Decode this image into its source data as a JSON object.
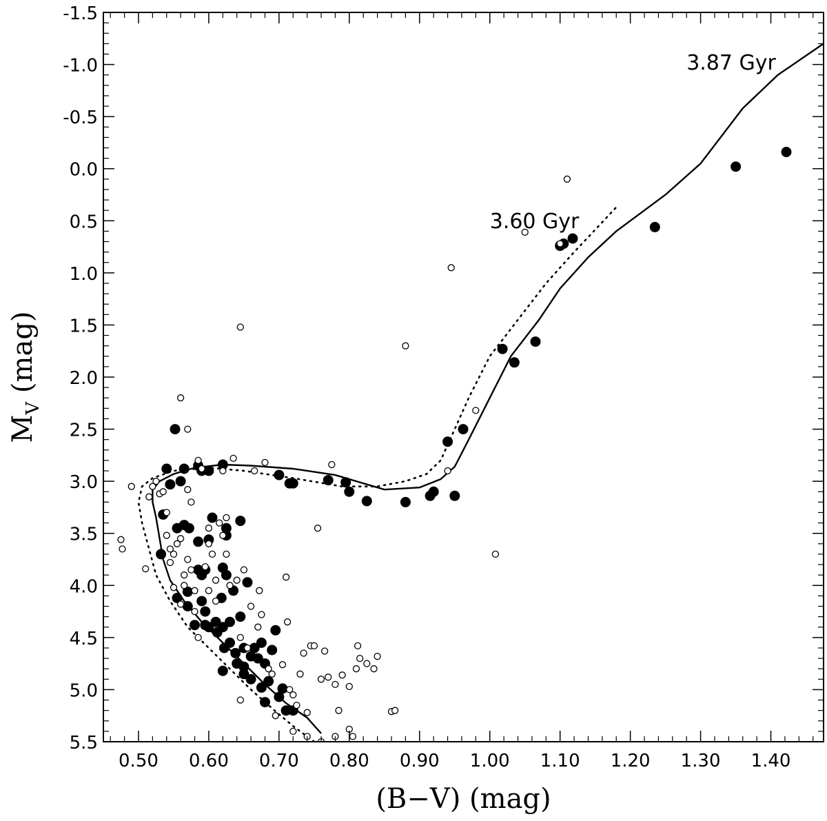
{
  "chart_data": {
    "type": "scatter",
    "xlabel": "(B−V) (mag)",
    "ylabel_main": "M",
    "ylabel_sub": "V",
    "ylabel_unit": " (mag)",
    "xlim": [
      0.45,
      1.475
    ],
    "ylim": [
      5.5,
      -1.5
    ],
    "y_inverted": true,
    "grid": false,
    "x_ticks": [
      "0.50",
      "0.60",
      "0.70",
      "0.80",
      "0.90",
      "1.00",
      "1.10",
      "1.20",
      "1.30",
      "1.40"
    ],
    "y_ticks": [
      "-1.5",
      "-1.0",
      "-0.5",
      "0.0",
      "0.5",
      "1.0",
      "1.5",
      "2.0",
      "2.5",
      "3.0",
      "3.5",
      "4.0",
      "4.5",
      "5.0",
      "5.5"
    ],
    "annotations": [
      {
        "text": "3.87 Gyr",
        "x": 1.28,
        "y": -0.95
      },
      {
        "text": "3.60 Gyr",
        "x": 1.0,
        "y": 0.57
      }
    ],
    "isochrones": [
      {
        "label": "3.87 Gyr",
        "style": "solid",
        "points": [
          [
            0.76,
            5.42
          ],
          [
            0.74,
            5.27
          ],
          [
            0.71,
            5.13
          ],
          [
            0.68,
            4.95
          ],
          [
            0.65,
            4.75
          ],
          [
            0.62,
            4.55
          ],
          [
            0.59,
            4.35
          ],
          [
            0.565,
            4.15
          ],
          [
            0.545,
            3.95
          ],
          [
            0.535,
            3.75
          ],
          [
            0.53,
            3.55
          ],
          [
            0.525,
            3.35
          ],
          [
            0.52,
            3.2
          ],
          [
            0.52,
            3.08
          ],
          [
            0.53,
            3.0
          ],
          [
            0.55,
            2.93
          ],
          [
            0.58,
            2.87
          ],
          [
            0.62,
            2.84
          ],
          [
            0.66,
            2.85
          ],
          [
            0.72,
            2.88
          ],
          [
            0.78,
            2.94
          ],
          [
            0.85,
            3.08
          ],
          [
            0.9,
            3.06
          ],
          [
            0.93,
            2.98
          ],
          [
            0.95,
            2.86
          ],
          [
            0.97,
            2.6
          ],
          [
            1.0,
            2.2
          ],
          [
            1.03,
            1.8
          ],
          [
            1.07,
            1.45
          ],
          [
            1.1,
            1.15
          ],
          [
            1.14,
            0.85
          ],
          [
            1.18,
            0.6
          ],
          [
            1.25,
            0.25
          ],
          [
            1.3,
            -0.05
          ],
          [
            1.36,
            -0.58
          ],
          [
            1.41,
            -0.9
          ],
          [
            1.475,
            -1.2
          ]
        ]
      },
      {
        "label": "3.60 Gyr",
        "style": "dotted",
        "points": [
          [
            0.75,
            5.5
          ],
          [
            0.72,
            5.35
          ],
          [
            0.69,
            5.18
          ],
          [
            0.66,
            5.0
          ],
          [
            0.63,
            4.8
          ],
          [
            0.6,
            4.6
          ],
          [
            0.57,
            4.4
          ],
          [
            0.545,
            4.15
          ],
          [
            0.525,
            3.9
          ],
          [
            0.515,
            3.65
          ],
          [
            0.505,
            3.4
          ],
          [
            0.5,
            3.2
          ],
          [
            0.505,
            3.05
          ],
          [
            0.52,
            2.97
          ],
          [
            0.55,
            2.9
          ],
          [
            0.6,
            2.87
          ],
          [
            0.65,
            2.9
          ],
          [
            0.72,
            2.97
          ],
          [
            0.79,
            3.05
          ],
          [
            0.84,
            3.05
          ],
          [
            0.88,
            3.0
          ],
          [
            0.91,
            2.93
          ],
          [
            0.93,
            2.8
          ],
          [
            0.95,
            2.5
          ],
          [
            0.97,
            2.2
          ],
          [
            1.0,
            1.8
          ],
          [
            1.04,
            1.45
          ],
          [
            1.08,
            1.1
          ],
          [
            1.12,
            0.8
          ],
          [
            1.155,
            0.55
          ],
          [
            1.18,
            0.37
          ]
        ]
      }
    ],
    "series": [
      {
        "name": "filled",
        "marker": "filled-circle",
        "points": [
          [
            0.552,
            2.5
          ],
          [
            0.54,
            2.88
          ],
          [
            0.545,
            3.03
          ],
          [
            0.56,
            3.0
          ],
          [
            0.565,
            2.88
          ],
          [
            0.585,
            2.85
          ],
          [
            0.59,
            2.9
          ],
          [
            0.6,
            2.9
          ],
          [
            0.62,
            2.84
          ],
          [
            0.7,
            2.94
          ],
          [
            0.715,
            3.02
          ],
          [
            0.72,
            3.02
          ],
          [
            0.77,
            2.99
          ],
          [
            0.795,
            3.01
          ],
          [
            0.8,
            3.1
          ],
          [
            0.825,
            3.19
          ],
          [
            0.88,
            3.2
          ],
          [
            0.915,
            3.14
          ],
          [
            0.92,
            3.1
          ],
          [
            0.95,
            3.14
          ],
          [
            0.94,
            2.62
          ],
          [
            0.962,
            2.5
          ],
          [
            1.018,
            1.73
          ],
          [
            1.035,
            1.86
          ],
          [
            1.065,
            1.66
          ],
          [
            1.1,
            0.74
          ],
          [
            1.105,
            0.72
          ],
          [
            1.118,
            0.67
          ],
          [
            1.235,
            0.56
          ],
          [
            1.35,
            -0.02
          ],
          [
            1.422,
            -0.16
          ],
          [
            0.535,
            3.32
          ],
          [
            0.555,
            3.45
          ],
          [
            0.565,
            3.42
          ],
          [
            0.572,
            3.45
          ],
          [
            0.532,
            3.7
          ],
          [
            0.555,
            4.12
          ],
          [
            0.57,
            4.06
          ],
          [
            0.57,
            4.2
          ],
          [
            0.58,
            4.38
          ],
          [
            0.585,
            3.58
          ],
          [
            0.6,
            3.56
          ],
          [
            0.585,
            3.85
          ],
          [
            0.595,
            3.85
          ],
          [
            0.59,
            3.9
          ],
          [
            0.59,
            4.15
          ],
          [
            0.595,
            4.25
          ],
          [
            0.595,
            4.38
          ],
          [
            0.6,
            4.4
          ],
          [
            0.605,
            3.35
          ],
          [
            0.61,
            4.35
          ],
          [
            0.612,
            4.45
          ],
          [
            0.618,
            4.12
          ],
          [
            0.62,
            4.4
          ],
          [
            0.622,
            4.6
          ],
          [
            0.62,
            4.82
          ],
          [
            0.625,
            3.45
          ],
          [
            0.625,
            3.52
          ],
          [
            0.62,
            3.83
          ],
          [
            0.625,
            3.9
          ],
          [
            0.635,
            4.05
          ],
          [
            0.63,
            4.35
          ],
          [
            0.63,
            4.55
          ],
          [
            0.638,
            4.65
          ],
          [
            0.64,
            4.75
          ],
          [
            0.645,
            4.3
          ],
          [
            0.645,
            3.38
          ],
          [
            0.65,
            4.6
          ],
          [
            0.65,
            4.78
          ],
          [
            0.65,
            4.85
          ],
          [
            0.655,
            3.97
          ],
          [
            0.66,
            4.9
          ],
          [
            0.66,
            4.68
          ],
          [
            0.665,
            4.6
          ],
          [
            0.67,
            4.7
          ],
          [
            0.675,
            4.55
          ],
          [
            0.675,
            4.98
          ],
          [
            0.68,
            4.75
          ],
          [
            0.68,
            5.12
          ],
          [
            0.685,
            4.92
          ],
          [
            0.69,
            4.62
          ],
          [
            0.695,
            4.43
          ],
          [
            0.7,
            5.07
          ],
          [
            0.705,
            4.99
          ],
          [
            0.71,
            5.2
          ],
          [
            0.72,
            5.2
          ]
        ]
      },
      {
        "name": "open",
        "marker": "open-circle",
        "points": [
          [
            0.475,
            3.56
          ],
          [
            0.477,
            3.65
          ],
          [
            0.49,
            3.05
          ],
          [
            0.51,
            3.84
          ],
          [
            0.515,
            3.15
          ],
          [
            0.52,
            3.05
          ],
          [
            0.525,
            3.0
          ],
          [
            0.53,
            3.12
          ],
          [
            0.535,
            3.1
          ],
          [
            0.54,
            3.3
          ],
          [
            0.54,
            3.52
          ],
          [
            0.545,
            3.65
          ],
          [
            0.55,
            3.7
          ],
          [
            0.555,
            3.6
          ],
          [
            0.545,
            3.78
          ],
          [
            0.55,
            4.02
          ],
          [
            0.56,
            2.2
          ],
          [
            0.56,
            3.55
          ],
          [
            0.565,
            3.9
          ],
          [
            0.565,
            4.0
          ],
          [
            0.56,
            4.18
          ],
          [
            0.57,
            2.5
          ],
          [
            0.57,
            3.08
          ],
          [
            0.575,
            3.2
          ],
          [
            0.57,
            3.75
          ],
          [
            0.575,
            3.85
          ],
          [
            0.58,
            4.05
          ],
          [
            0.58,
            4.25
          ],
          [
            0.585,
            2.8
          ],
          [
            0.59,
            2.88
          ],
          [
            0.595,
            3.82
          ],
          [
            0.585,
            4.5
          ],
          [
            0.6,
            3.45
          ],
          [
            0.6,
            3.6
          ],
          [
            0.6,
            4.05
          ],
          [
            0.605,
            3.7
          ],
          [
            0.61,
            3.95
          ],
          [
            0.61,
            4.15
          ],
          [
            0.615,
            3.4
          ],
          [
            0.62,
            3.52
          ],
          [
            0.62,
            2.9
          ],
          [
            0.625,
            3.35
          ],
          [
            0.625,
            3.7
          ],
          [
            0.63,
            4.0
          ],
          [
            0.635,
            2.78
          ],
          [
            0.64,
            3.95
          ],
          [
            0.645,
            4.5
          ],
          [
            0.645,
            1.52
          ],
          [
            0.645,
            5.1
          ],
          [
            0.65,
            3.85
          ],
          [
            0.655,
            4.6
          ],
          [
            0.66,
            4.2
          ],
          [
            0.665,
            2.9
          ],
          [
            0.67,
            4.4
          ],
          [
            0.672,
            4.05
          ],
          [
            0.675,
            4.28
          ],
          [
            0.68,
            2.82
          ],
          [
            0.685,
            4.8
          ],
          [
            0.69,
            4.85
          ],
          [
            0.695,
            5.25
          ],
          [
            0.705,
            4.76
          ],
          [
            0.71,
            3.92
          ],
          [
            0.712,
            4.35
          ],
          [
            0.715,
            5.0
          ],
          [
            0.72,
            5.05
          ],
          [
            0.725,
            5.15
          ],
          [
            0.73,
            4.85
          ],
          [
            0.735,
            4.65
          ],
          [
            0.74,
            5.22
          ],
          [
            0.745,
            4.58
          ],
          [
            0.75,
            4.58
          ],
          [
            0.755,
            3.45
          ],
          [
            0.76,
            4.9
          ],
          [
            0.765,
            4.63
          ],
          [
            0.77,
            4.88
          ],
          [
            0.775,
            2.84
          ],
          [
            0.78,
            4.95
          ],
          [
            0.785,
            5.2
          ],
          [
            0.79,
            4.86
          ],
          [
            0.8,
            4.97
          ],
          [
            0.805,
            5.45
          ],
          [
            0.81,
            4.8
          ],
          [
            0.812,
            4.58
          ],
          [
            0.815,
            4.7
          ],
          [
            0.825,
            4.75
          ],
          [
            0.835,
            4.8
          ],
          [
            0.84,
            4.68
          ],
          [
            0.86,
            5.21
          ],
          [
            0.865,
            5.2
          ],
          [
            0.88,
            1.7
          ],
          [
            0.94,
            2.9
          ],
          [
            0.945,
            0.95
          ],
          [
            0.98,
            2.32
          ],
          [
            1.008,
            3.7
          ],
          [
            1.05,
            0.61
          ],
          [
            1.1,
            0.72
          ],
          [
            1.11,
            0.1
          ],
          [
            0.76,
            5.5
          ],
          [
            0.78,
            5.45
          ],
          [
            0.8,
            5.38
          ],
          [
            0.74,
            5.45
          ],
          [
            0.72,
            5.4
          ]
        ]
      }
    ]
  }
}
